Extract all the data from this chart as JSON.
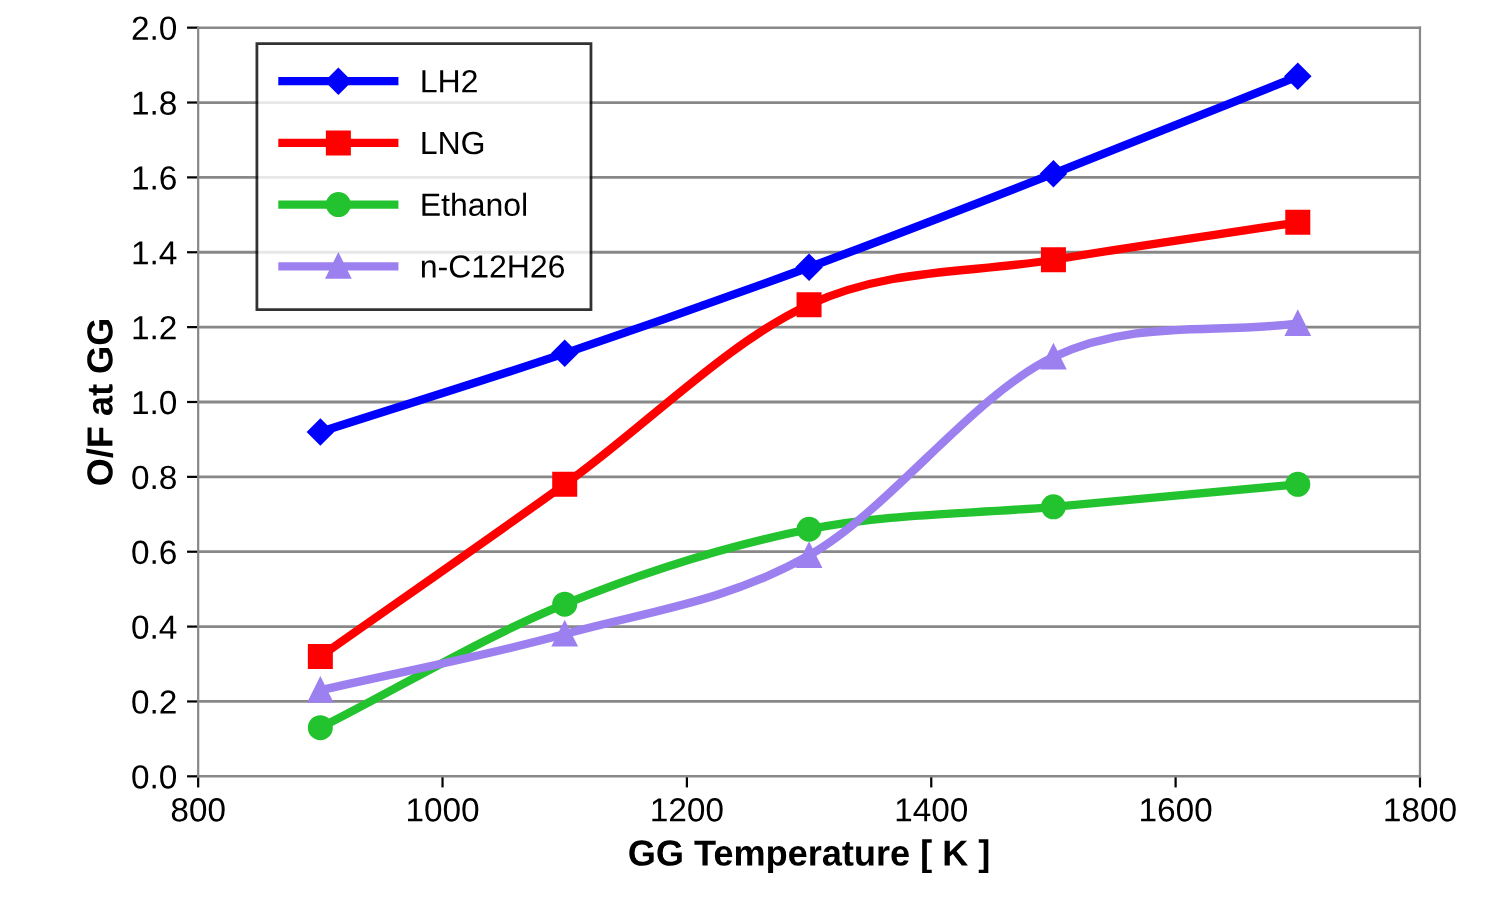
{
  "chart_data": {
    "type": "line",
    "xlabel": "GG Temperature [ K ]",
    "ylabel": "O/F at GG",
    "x": [
      900,
      1100,
      1300,
      1500,
      1700
    ],
    "series": [
      {
        "name": "LH2",
        "color": "#0000ff",
        "marker": "diamond",
        "values": [
          0.92,
          1.13,
          1.36,
          1.61,
          1.87
        ]
      },
      {
        "name": "LNG",
        "color": "#ff0000",
        "marker": "square",
        "values": [
          0.32,
          0.78,
          1.26,
          1.38,
          1.48
        ]
      },
      {
        "name": "Ethanol",
        "color": "#22c32e",
        "marker": "circle",
        "values": [
          0.13,
          0.46,
          0.66,
          0.72,
          0.78
        ]
      },
      {
        "name": "n-C12H26",
        "color": "#9c80f0",
        "marker": "triangle",
        "values": [
          0.23,
          0.38,
          0.59,
          1.12,
          1.21
        ]
      }
    ],
    "xlim": [
      800,
      1800
    ],
    "xticks": [
      800,
      1000,
      1200,
      1400,
      1600,
      1800
    ],
    "ylim": [
      0,
      2.0
    ],
    "yticks": [
      {
        "value": 0,
        "label": "0.0"
      },
      {
        "value": 0.2,
        "label": "0.2"
      },
      {
        "value": 0.4,
        "label": "0.4"
      },
      {
        "value": 0.6,
        "label": "0.6"
      },
      {
        "value": 0.8,
        "label": "0.8"
      },
      {
        "value": 1.0,
        "label": "1.0"
      },
      {
        "value": 1.2,
        "label": "1.2"
      },
      {
        "value": 1.4,
        "label": "1.4"
      },
      {
        "value": 1.6,
        "label": "1.6"
      },
      {
        "value": 1.8,
        "label": "1.8"
      },
      {
        "value": 2.0,
        "label": "2.0"
      }
    ],
    "grid": "y",
    "legend": "top left",
    "line_style": "solid"
  }
}
